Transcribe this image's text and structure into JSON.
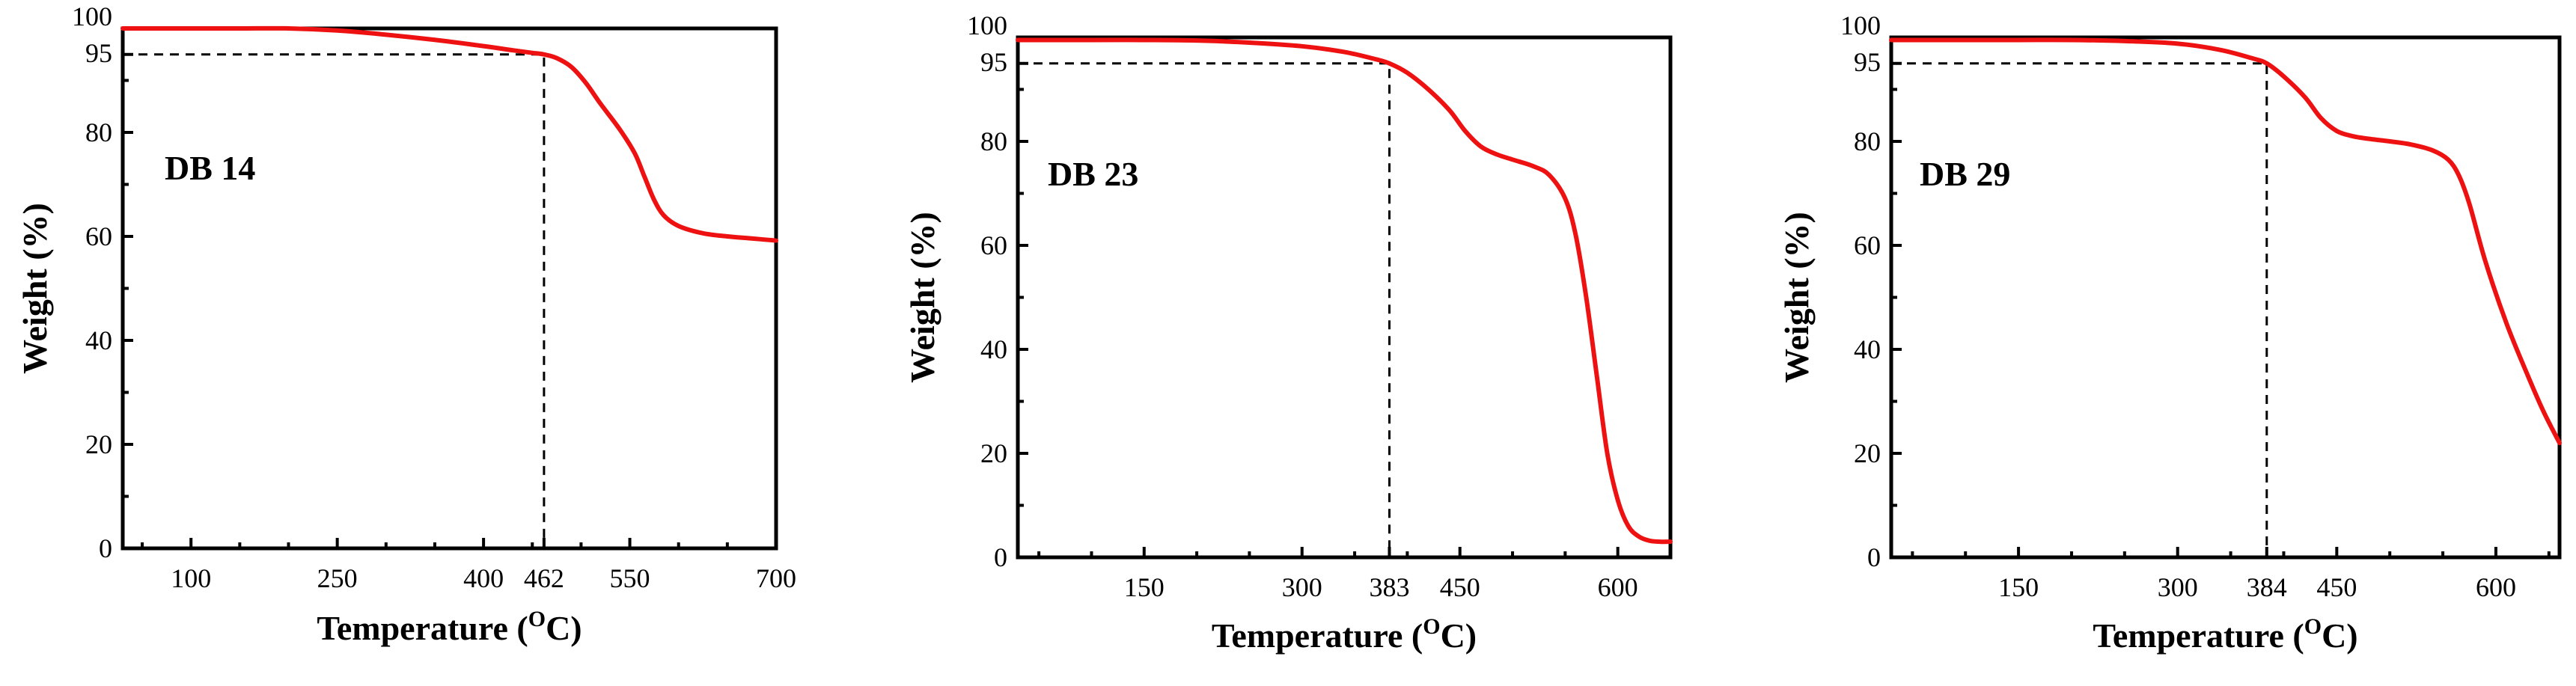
{
  "chart_data": [
    {
      "type": "line",
      "sample": "DB 14",
      "xlabel": "Temperature",
      "xunit_sup": "O",
      "xunit_tail": "C)",
      "ylabel": "Weight (%)",
      "xlim": [
        30,
        700
      ],
      "ylim": [
        0,
        100
      ],
      "xticks": [
        100,
        250,
        400,
        462,
        550,
        700
      ],
      "yticks": [
        0,
        20,
        40,
        60,
        80,
        95,
        100
      ],
      "t95": 462,
      "color": "#ee1111",
      "series": [
        {
          "name": "DB 14",
          "x": [
            30,
            100,
            150,
            200,
            250,
            300,
            350,
            400,
            430,
            450,
            462,
            475,
            490,
            505,
            520,
            540,
            555,
            565,
            575,
            585,
            600,
            625,
            650,
            675,
            700
          ],
          "y": [
            100,
            100,
            100,
            100,
            99.6,
            98.8,
            97.8,
            96.6,
            95.8,
            95.3,
            95,
            94.3,
            92.6,
            89.5,
            85.5,
            80.5,
            76,
            71.5,
            67,
            64,
            62,
            60.6,
            60,
            59.6,
            59.2
          ]
        }
      ]
    },
    {
      "type": "line",
      "sample": "DB 23",
      "xlabel": "Temperature",
      "xunit_sup": "O",
      "xunit_tail": "C)",
      "ylabel": "Weight (%)",
      "xlim": [
        30,
        650
      ],
      "ylim": [
        0,
        100
      ],
      "xticks": [
        150,
        300,
        383,
        450,
        600
      ],
      "yticks": [
        0,
        20,
        40,
        60,
        80,
        95,
        100
      ],
      "t95": 383,
      "color": "#ee1111",
      "series": [
        {
          "name": "DB 23",
          "x": [
            30,
            100,
            150,
            200,
            250,
            300,
            340,
            370,
            383,
            400,
            420,
            440,
            455,
            470,
            485,
            500,
            520,
            535,
            550,
            560,
            570,
            580,
            590,
            600,
            610,
            620,
            630,
            640,
            650
          ],
          "y": [
            99.5,
            99.5,
            99.5,
            99.4,
            99,
            98.3,
            97.2,
            95.8,
            95,
            93.2,
            90,
            86,
            82,
            79,
            77.5,
            76.5,
            75.2,
            73.5,
            69,
            62,
            50,
            35,
            20,
            11,
            6,
            4,
            3.2,
            3,
            3
          ]
        }
      ]
    },
    {
      "type": "line",
      "sample": "DB 29",
      "xlabel": "Temperature",
      "xunit_sup": "O",
      "xunit_tail": "C)",
      "ylabel": "Weight (%)",
      "xlim": [
        30,
        660
      ],
      "ylim": [
        0,
        100
      ],
      "xticks": [
        150,
        300,
        384,
        450,
        600
      ],
      "yticks": [
        0,
        20,
        40,
        60,
        80,
        95,
        100
      ],
      "t95": 384,
      "color": "#ee1111",
      "series": [
        {
          "name": "DB 29",
          "x": [
            30,
            100,
            150,
            200,
            250,
            300,
            340,
            370,
            384,
            400,
            420,
            435,
            450,
            465,
            480,
            500,
            520,
            540,
            555,
            565,
            575,
            590,
            610,
            630,
            645,
            660
          ],
          "y": [
            99.5,
            99.5,
            99.5,
            99.5,
            99.3,
            98.8,
            97.6,
            96,
            95,
            92.5,
            88.5,
            84.5,
            82,
            81,
            80.5,
            80,
            79.4,
            78.3,
            76.5,
            73.5,
            68,
            57,
            45,
            35,
            28,
            22
          ]
        }
      ]
    }
  ]
}
